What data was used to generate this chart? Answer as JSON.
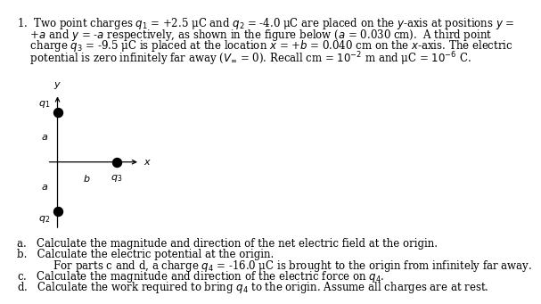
{
  "line1": "1.  Two point charges $q_1$ = +2.5 μC and $q_2$ = -4.0 μC are placed on the $y$-axis at positions $y$ =",
  "line2": "    +$a$ and $y$ = -$a$ respectively, as shown in the figure below ($a$ = 0.030 cm).  A third point",
  "line3": "    charge $q_3$ = -9.5 μC is placed at the location $x$ = +$b$ = 0.040 cm on the $x$-axis. The electric",
  "line4": "    potential is zero infinitely far away ($V_\\infty$ = 0). Recall cm = $10^{-2}$ m and μC = $10^{-6}$ C.",
  "parta": "a.   Calculate the magnitude and direction of the net electric field at the origin.",
  "partb": "b.   Calculate the electric potential at the origin.",
  "partbc": "     For parts c and d, a charge $q_4$ = -16.0 μC is brought to the origin from infinitely far away.",
  "partc": "c.   Calculate the magnitude and direction of the electric force on $q_4$.",
  "partd": "d.   Calculate the work required to bring $q_4$ to the origin. Assume all charges are at rest.",
  "fig_ox": 0.115,
  "fig_oy": 0.46,
  "fig_q1y": 0.635,
  "fig_q2y": 0.285,
  "fig_q3x": 0.255,
  "fig_xend": 0.31,
  "fig_ytop": 0.7,
  "fig_ybot": 0.22,
  "dot_size": 52,
  "dot_color": "#000000",
  "bg": "#ffffff",
  "tc": "#000000",
  "fs_body": 8.5,
  "fs_label": 8.0
}
